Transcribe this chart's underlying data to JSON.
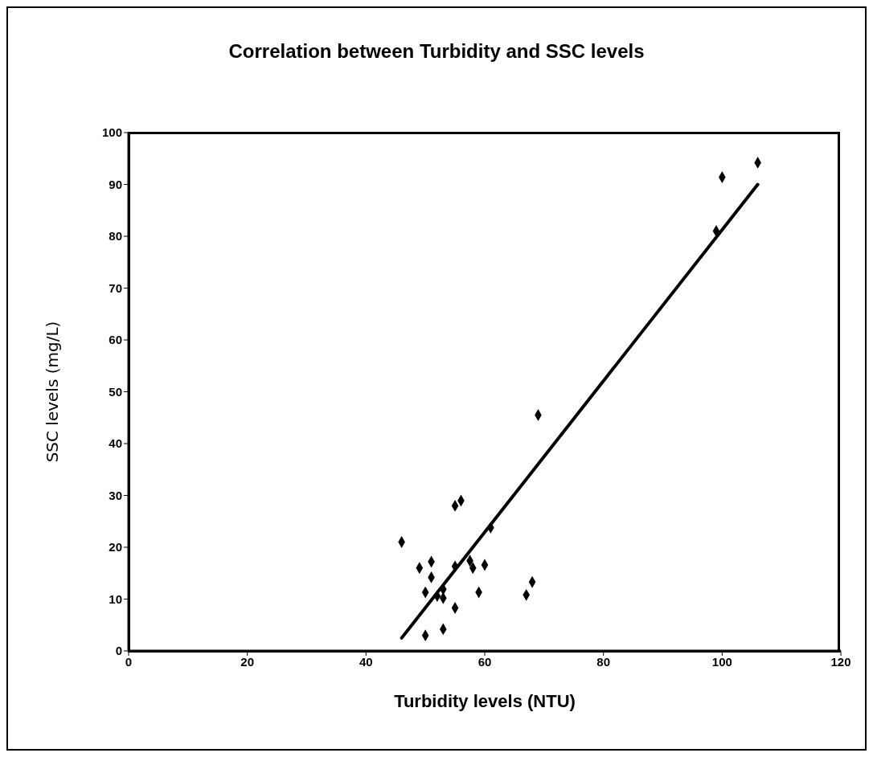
{
  "chart_data": {
    "type": "scatter",
    "title": "Correlation between Turbidity and SSC levels",
    "xlabel": "Turbidity levels (NTU)",
    "ylabel": "SSC levels (mg/L)",
    "xlim": [
      0,
      120
    ],
    "xticks": [
      0,
      20,
      40,
      60,
      80,
      100,
      120
    ],
    "ylim": [
      0,
      100
    ],
    "yticks": [
      0,
      10,
      20,
      30,
      40,
      50,
      60,
      70,
      80,
      90,
      100
    ],
    "grid": false,
    "marker": "diamond",
    "series": [
      {
        "color": "#000000",
        "x": [
          46,
          49,
          51,
          51,
          50,
          50,
          53,
          52,
          53,
          53,
          55,
          55,
          55,
          56,
          61,
          57.5,
          58,
          60,
          59,
          68,
          67,
          69,
          99,
          100,
          106
        ],
        "values": [
          21,
          16,
          17.2,
          14.2,
          11.3,
          3,
          4.2,
          10.6,
          10.2,
          11.9,
          16.3,
          8.3,
          28,
          29,
          23.8,
          17.4,
          16,
          16.6,
          11.3,
          13.3,
          10.8,
          45.5,
          81,
          91.4,
          94.2
        ]
      },
      {
        "type": "line",
        "color": "#000000",
        "line_style": "solid",
        "marker": "none",
        "x": [
          46,
          106
        ],
        "values": [
          2.5,
          90
        ]
      }
    ]
  }
}
